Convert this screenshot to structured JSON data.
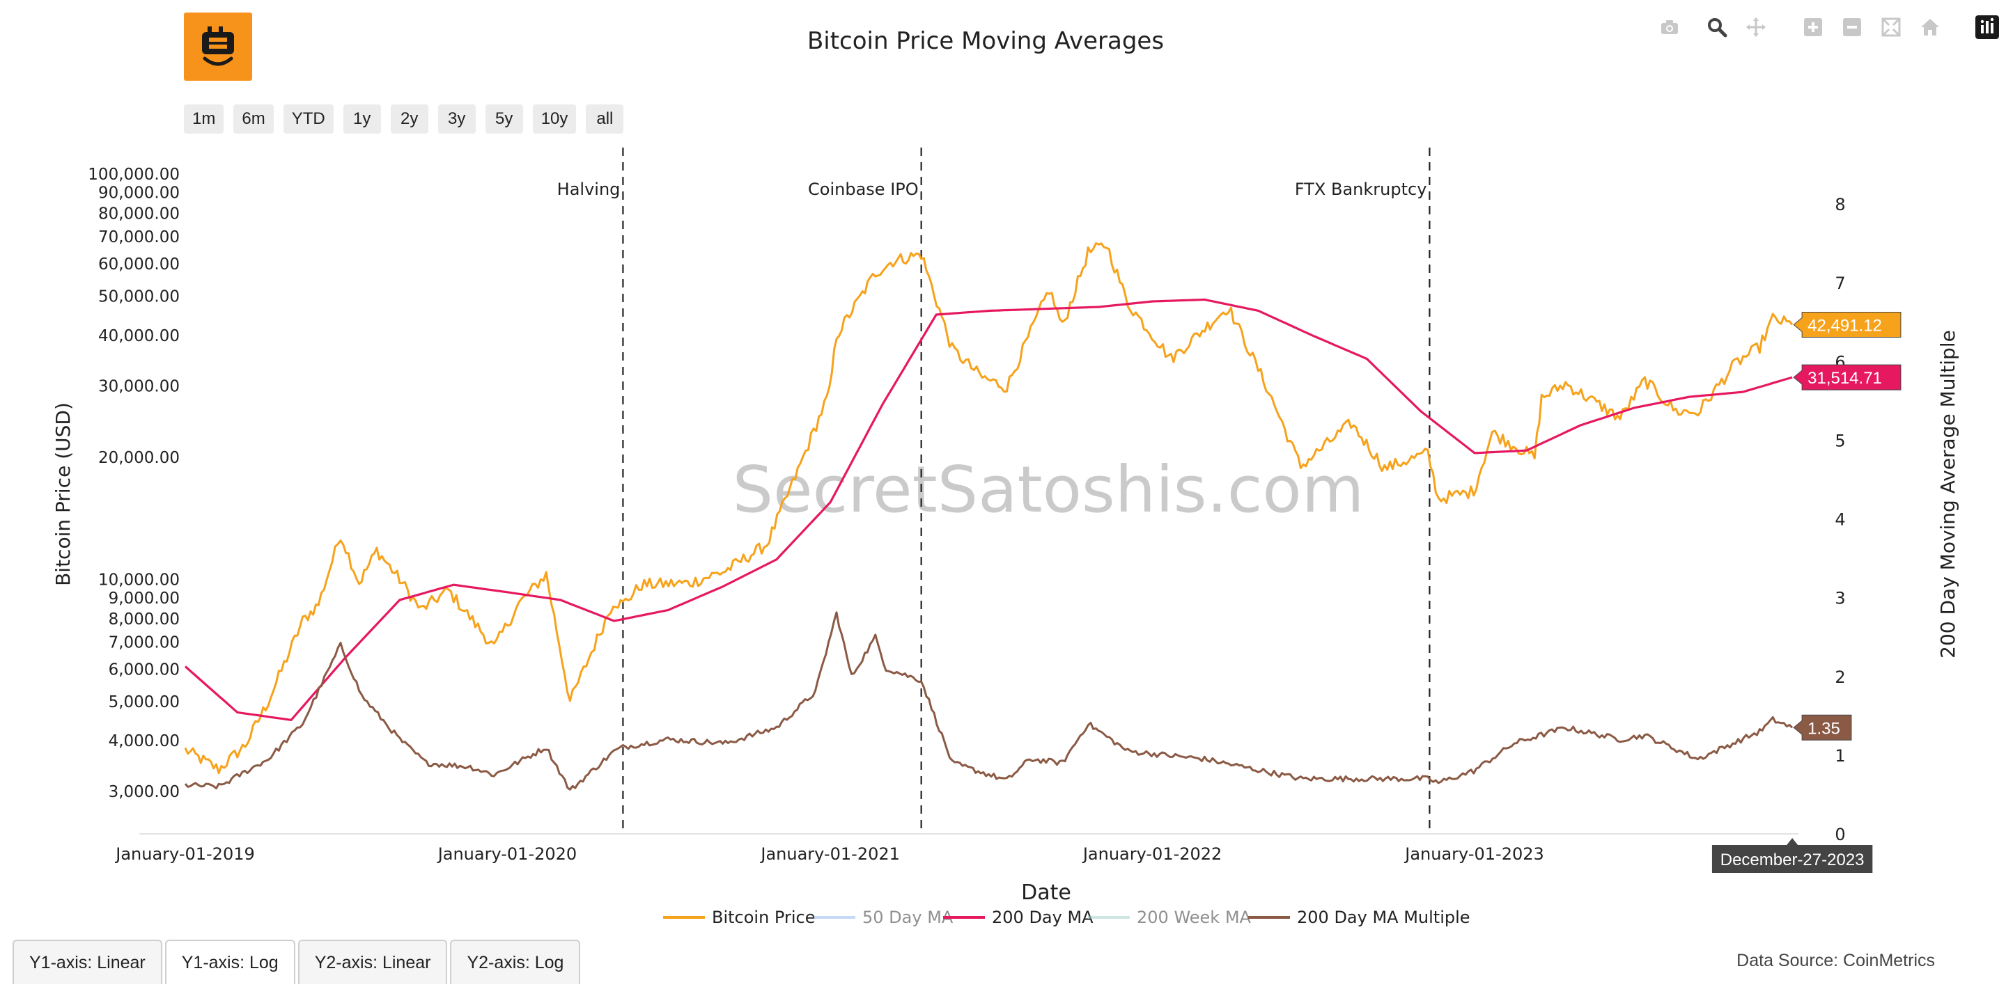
{
  "range_buttons": [
    "1m",
    "6m",
    "YTD",
    "1y",
    "2y",
    "3y",
    "5y",
    "10y",
    "all"
  ],
  "toolbar": [
    {
      "icon": "camera-icon",
      "name": "download-plot"
    },
    {
      "icon": "zoom-icon",
      "name": "zoom"
    },
    {
      "icon": "pan-icon",
      "name": "pan"
    },
    {
      "icon": "zoom-in-icon",
      "name": "zoom-in"
    },
    {
      "icon": "zoom-out-icon",
      "name": "zoom-out"
    },
    {
      "icon": "autoscale-icon",
      "name": "autoscale"
    },
    {
      "icon": "home-icon",
      "name": "reset-axes"
    },
    {
      "icon": "plotly-logo-icon",
      "name": "plotly-logo"
    }
  ],
  "watermark": "SecretSatoshis.com",
  "tabs": [
    "Y1-axis: Linear",
    "Y1-axis: Log",
    "Y2-axis: Linear",
    "Y2-axis: Log"
  ],
  "data_source": "Data Source: CoinMetrics",
  "colors": {
    "price": "#f7a21b",
    "ma50": "#8fb4f0",
    "ma200": "#e6185f",
    "ma200w": "#9ccfc9",
    "multiple": "#8b5a45",
    "logo": "#f7931a"
  },
  "chart_data": {
    "type": "line",
    "title": "Bitcoin Price Moving Averages",
    "xlabel": "Date",
    "ylabel": "Bitcoin Price (USD)",
    "y2label": "200 Day Moving Average Multiple",
    "y_scale": "log",
    "ylim": [
      2500,
      105000
    ],
    "y2lim": [
      0,
      8
    ],
    "xlim": [
      "2019-01-01",
      "2024-01-03"
    ],
    "x_ticks": [
      "2019-01-01",
      "2020-01-01",
      "2021-01-01",
      "2022-01-01",
      "2023-01-01"
    ],
    "x_tick_labels": [
      "January-01-2019",
      "January-01-2020",
      "January-01-2021",
      "January-01-2022",
      "January-01-2023"
    ],
    "y_ticks": [
      3000,
      4000,
      5000,
      6000,
      7000,
      8000,
      9000,
      10000,
      20000,
      30000,
      40000,
      50000,
      60000,
      70000,
      80000,
      90000,
      100000
    ],
    "y_tick_labels": [
      "3,000.00",
      "4,000.00",
      "5,000.00",
      "6,000.00",
      "7,000.00",
      "8,000.00",
      "9,000.00",
      "10,000.00",
      "20,000.00",
      "30,000.00",
      "40,000.00",
      "50,000.00",
      "60,000.00",
      "70,000.00",
      "80,000.00",
      "90,000.00",
      "100,000.00"
    ],
    "y2_ticks": [
      0,
      1,
      2,
      3,
      4,
      5,
      6,
      7,
      8
    ],
    "grid": false,
    "legend": {
      "placement": "bottom-center",
      "entries": [
        {
          "name": "Bitcoin Price",
          "color": "#f7a21b",
          "visible": true
        },
        {
          "name": "50 Day MA",
          "color": "#8fb4f0",
          "visible": false
        },
        {
          "name": "200 Day MA",
          "color": "#e6185f",
          "visible": true
        },
        {
          "name": "200 Week MA",
          "color": "#9ccfc9",
          "visible": false
        },
        {
          "name": "200 Day MA Multiple",
          "color": "#8b5a45",
          "visible": true
        }
      ]
    },
    "events": [
      {
        "date": "2020-05-11",
        "label": "Halving"
      },
      {
        "date": "2021-04-14",
        "label": "Coinbase IPO"
      },
      {
        "date": "2022-11-11",
        "label": "FTX Bankruptcy"
      }
    ],
    "series": [
      {
        "name": "Bitcoin Price",
        "axis": "y",
        "x": [
          "2019-01-01",
          "2019-02-08",
          "2019-03-10",
          "2019-04-05",
          "2019-05-14",
          "2019-06-01",
          "2019-06-26",
          "2019-07-17",
          "2019-08-06",
          "2019-09-01",
          "2019-09-25",
          "2019-10-26",
          "2019-12-17",
          "2020-01-14",
          "2020-02-14",
          "2020-03-12",
          "2020-04-30",
          "2020-05-11",
          "2020-06-01",
          "2020-07-26",
          "2020-09-04",
          "2020-10-21",
          "2020-11-25",
          "2020-12-31",
          "2021-01-08",
          "2021-02-21",
          "2021-03-13",
          "2021-04-14",
          "2021-05-19",
          "2021-06-22",
          "2021-07-20",
          "2021-09-06",
          "2021-09-21",
          "2021-10-20",
          "2021-11-10",
          "2021-12-04",
          "2022-01-22",
          "2022-03-28",
          "2022-05-10",
          "2022-06-18",
          "2022-08-14",
          "2022-09-21",
          "2022-11-09",
          "2022-11-21",
          "2022-12-31",
          "2023-01-21",
          "2023-03-10",
          "2023-03-18",
          "2023-04-14",
          "2023-06-15",
          "2023-07-13",
          "2023-08-17",
          "2023-09-11",
          "2023-10-23",
          "2023-11-20",
          "2023-12-05",
          "2023-12-27"
        ],
        "y": [
          3800,
          3400,
          3900,
          5000,
          7900,
          8700,
          12900,
          9800,
          11800,
          10000,
          8400,
          9400,
          6800,
          8700,
          10300,
          5000,
          8800,
          8700,
          9700,
          9800,
          10500,
          12200,
          18500,
          29000,
          40000,
          57000,
          61000,
          63500,
          37000,
          31500,
          29800,
          52000,
          42000,
          64000,
          67000,
          48000,
          35000,
          47000,
          30000,
          19000,
          24300,
          18800,
          20500,
          15800,
          16500,
          23000,
          20000,
          28000,
          30400,
          25000,
          31000,
          26000,
          25800,
          34000,
          37500,
          44000,
          42491.12
        ]
      },
      {
        "name": "200 Day MA",
        "axis": "y",
        "x": [
          "2019-01-01",
          "2019-03-01",
          "2019-05-01",
          "2019-07-01",
          "2019-09-01",
          "2019-11-01",
          "2020-01-01",
          "2020-03-01",
          "2020-05-01",
          "2020-07-01",
          "2020-09-01",
          "2020-11-01",
          "2021-01-01",
          "2021-03-01",
          "2021-05-01",
          "2021-07-01",
          "2021-09-01",
          "2021-11-01",
          "2022-01-01",
          "2022-03-01",
          "2022-05-01",
          "2022-07-01",
          "2022-09-01",
          "2022-11-01",
          "2023-01-01",
          "2023-03-01",
          "2023-05-01",
          "2023-07-01",
          "2023-09-01",
          "2023-11-01",
          "2023-12-27"
        ],
        "y": [
          6100,
          4700,
          4500,
          6400,
          8900,
          9700,
          9300,
          8900,
          7900,
          8400,
          9600,
          11200,
          15500,
          27000,
          45000,
          46000,
          46500,
          47000,
          48500,
          49000,
          46000,
          40000,
          35000,
          26000,
          20500,
          20800,
          24000,
          26500,
          28200,
          29000,
          31514.71
        ]
      },
      {
        "name": "200 Day MA Multiple",
        "axis": "y2",
        "x": [
          "2019-01-01",
          "2019-02-08",
          "2019-04-05",
          "2019-05-14",
          "2019-06-26",
          "2019-07-20",
          "2019-09-01",
          "2019-10-01",
          "2019-11-20",
          "2019-12-17",
          "2020-02-14",
          "2020-03-12",
          "2020-05-01",
          "2020-05-11",
          "2020-07-01",
          "2020-09-04",
          "2020-11-01",
          "2020-12-15",
          "2021-01-08",
          "2021-01-25",
          "2021-02-21",
          "2021-03-05",
          "2021-04-14",
          "2021-05-19",
          "2021-07-20",
          "2021-08-15",
          "2021-09-21",
          "2021-10-20",
          "2021-12-04",
          "2022-03-01",
          "2022-06-18",
          "2022-08-14",
          "2022-11-09",
          "2022-11-21",
          "2022-12-31",
          "2023-02-15",
          "2023-04-14",
          "2023-06-15",
          "2023-07-13",
          "2023-09-11",
          "2023-11-20",
          "2023-12-05",
          "2023-12-27"
        ],
        "y": [
          0.62,
          0.6,
          0.95,
          1.4,
          2.4,
          1.75,
          1.2,
          0.9,
          0.85,
          0.75,
          1.1,
          0.55,
          1.05,
          1.1,
          1.2,
          1.15,
          1.35,
          1.8,
          2.8,
          2.0,
          2.5,
          2.1,
          1.95,
          0.9,
          0.68,
          0.95,
          0.9,
          1.4,
          1.05,
          0.95,
          0.7,
          0.7,
          0.7,
          0.65,
          0.8,
          1.15,
          1.35,
          1.2,
          1.25,
          0.95,
          1.3,
          1.45,
          1.35
        ]
      }
    ],
    "annotations": [
      {
        "series": "Bitcoin Price",
        "text": "42,491.12"
      },
      {
        "series": "200 Day MA",
        "text": "31,514.71"
      },
      {
        "series": "200 Day MA Multiple",
        "text": "1.35"
      },
      {
        "series": "hover-date",
        "text": "December-27-2023"
      }
    ]
  }
}
